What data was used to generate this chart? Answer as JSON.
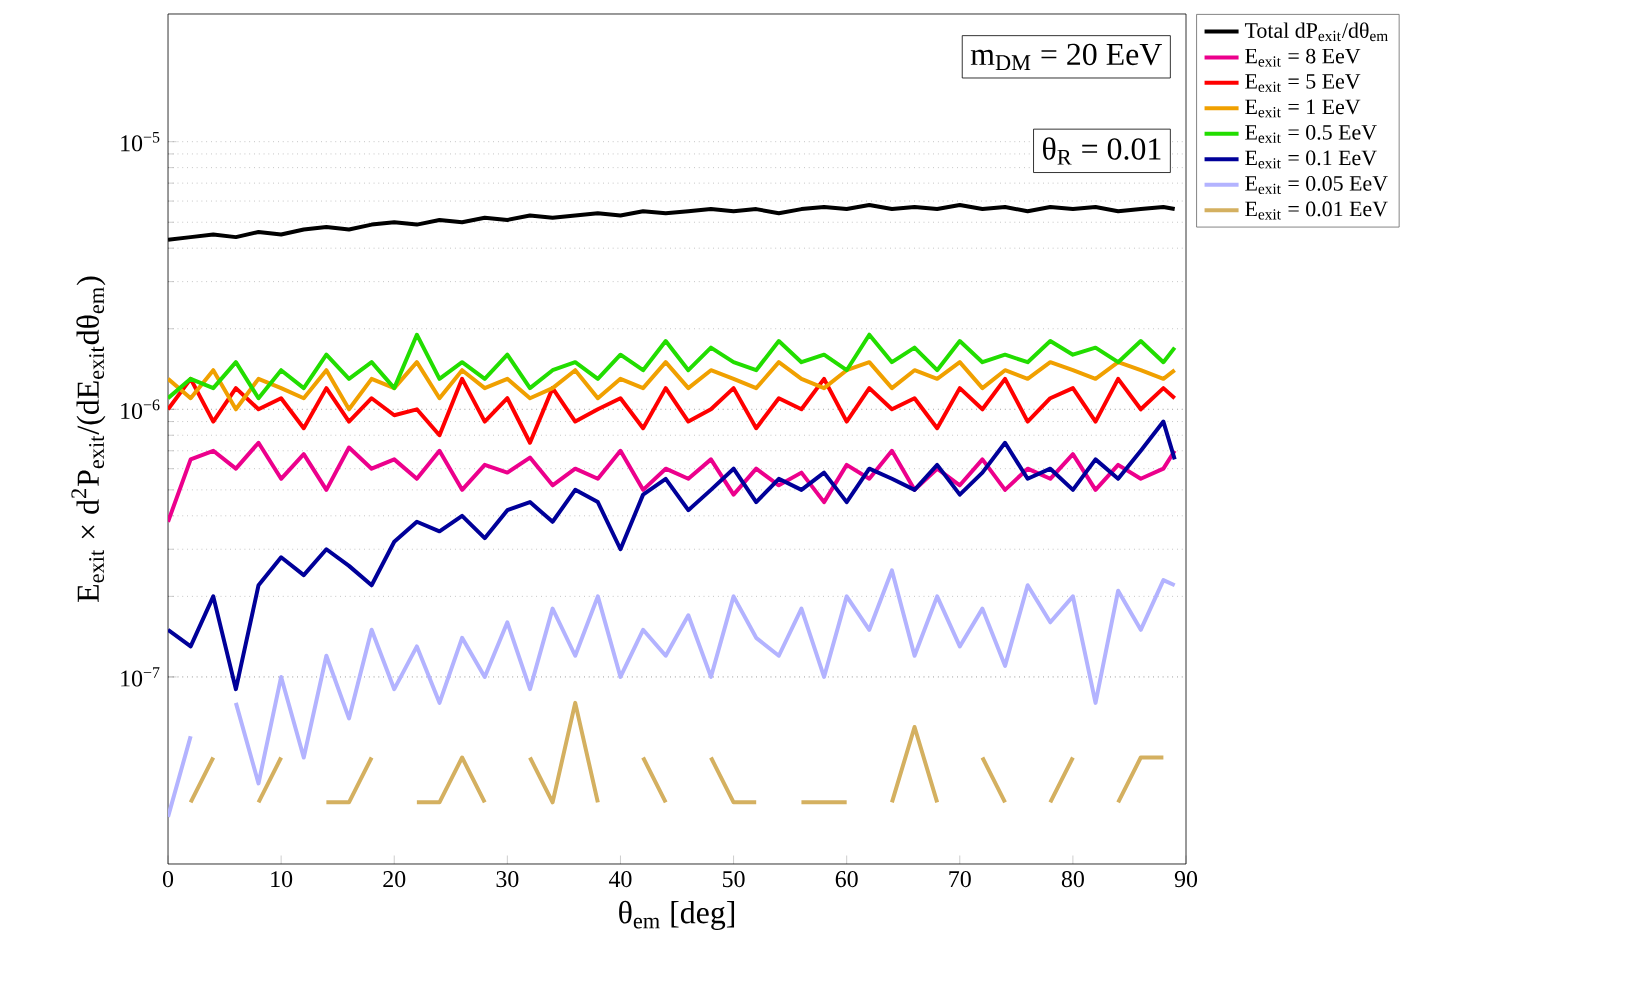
{
  "chart_data": {
    "type": "line",
    "xlabel": "θ$_{em}$ [deg]",
    "ylabel": "E$_{exit}$ × d$^{2}$P$_{exit}$/(dE$_{exit}$dθ$_{em}$)",
    "annotations": [
      "m$_{DM}$ = 20 EeV",
      "θ$_{R}$ = 0.01"
    ],
    "x": [
      0,
      2,
      4,
      6,
      8,
      10,
      12,
      14,
      16,
      18,
      20,
      22,
      24,
      26,
      28,
      30,
      32,
      34,
      36,
      38,
      40,
      42,
      44,
      46,
      48,
      50,
      52,
      54,
      56,
      58,
      60,
      62,
      64,
      66,
      68,
      70,
      72,
      74,
      76,
      78,
      80,
      82,
      84,
      86,
      88,
      89
    ],
    "xlim": [
      0,
      90
    ],
    "xticks": [
      0,
      10,
      20,
      30,
      40,
      50,
      60,
      70,
      80,
      90
    ],
    "ylim": [
      2e-08,
      3e-05
    ],
    "log": "y",
    "grid": "y",
    "legend": "right",
    "yticks": [
      {
        "value": 1e-07,
        "label": "10$^{−7}$"
      },
      {
        "value": 1e-06,
        "label": "10$^{−6}$"
      },
      {
        "value": 1e-05,
        "label": "10$^{−5}$"
      }
    ],
    "series": [
      {
        "name": "Total dP$_{exit}$/dθ$_{em}$",
        "color": "#000000",
        "values": [
          4.3e-06,
          4.4e-06,
          4.5e-06,
          4.4e-06,
          4.6e-06,
          4.5e-06,
          4.7e-06,
          4.8e-06,
          4.7e-06,
          4.9e-06,
          5e-06,
          4.9e-06,
          5.1e-06,
          5e-06,
          5.2e-06,
          5.1e-06,
          5.3e-06,
          5.2e-06,
          5.3e-06,
          5.4e-06,
          5.3e-06,
          5.5e-06,
          5.4e-06,
          5.5e-06,
          5.6e-06,
          5.5e-06,
          5.6e-06,
          5.4e-06,
          5.6e-06,
          5.7e-06,
          5.6e-06,
          5.8e-06,
          5.6e-06,
          5.7e-06,
          5.6e-06,
          5.8e-06,
          5.6e-06,
          5.7e-06,
          5.5e-06,
          5.7e-06,
          5.6e-06,
          5.7e-06,
          5.5e-06,
          5.6e-06,
          5.7e-06,
          5.6e-06
        ]
      },
      {
        "name": "E$_{exit}$ = 8 EeV",
        "color": "#ec008c",
        "values": [
          3.8e-07,
          6.5e-07,
          7e-07,
          6e-07,
          7.5e-07,
          5.5e-07,
          6.8e-07,
          5e-07,
          7.2e-07,
          6e-07,
          6.5e-07,
          5.5e-07,
          7e-07,
          5e-07,
          6.2e-07,
          5.8e-07,
          6.6e-07,
          5.2e-07,
          6e-07,
          5.5e-07,
          7e-07,
          5e-07,
          6e-07,
          5.5e-07,
          6.5e-07,
          4.8e-07,
          6e-07,
          5.2e-07,
          5.8e-07,
          4.5e-07,
          6.2e-07,
          5.5e-07,
          7e-07,
          5e-07,
          6e-07,
          5.2e-07,
          6.5e-07,
          5e-07,
          6e-07,
          5.5e-07,
          6.8e-07,
          5e-07,
          6.2e-07,
          5.5e-07,
          6e-07,
          7e-07
        ]
      },
      {
        "name": "E$_{exit}$ = 5 EeV",
        "color": "#ff0000",
        "values": [
          1e-06,
          1.3e-06,
          9e-07,
          1.2e-06,
          1e-06,
          1.1e-06,
          8.5e-07,
          1.2e-06,
          9e-07,
          1.1e-06,
          9.5e-07,
          1e-06,
          8e-07,
          1.3e-06,
          9e-07,
          1.1e-06,
          7.5e-07,
          1.2e-06,
          9e-07,
          1e-06,
          1.1e-06,
          8.5e-07,
          1.2e-06,
          9e-07,
          1e-06,
          1.2e-06,
          8.5e-07,
          1.1e-06,
          1e-06,
          1.3e-06,
          9e-07,
          1.2e-06,
          1e-06,
          1.1e-06,
          8.5e-07,
          1.2e-06,
          1e-06,
          1.3e-06,
          9e-07,
          1.1e-06,
          1.2e-06,
          9e-07,
          1.3e-06,
          1e-06,
          1.2e-06,
          1.1e-06
        ]
      },
      {
        "name": "E$_{exit}$ = 1 EeV",
        "color": "#f0a000",
        "values": [
          1.3e-06,
          1.1e-06,
          1.4e-06,
          1e-06,
          1.3e-06,
          1.2e-06,
          1.1e-06,
          1.4e-06,
          1e-06,
          1.3e-06,
          1.2e-06,
          1.5e-06,
          1.1e-06,
          1.4e-06,
          1.2e-06,
          1.3e-06,
          1.1e-06,
          1.2e-06,
          1.4e-06,
          1.1e-06,
          1.3e-06,
          1.2e-06,
          1.5e-06,
          1.2e-06,
          1.4e-06,
          1.3e-06,
          1.2e-06,
          1.5e-06,
          1.3e-06,
          1.2e-06,
          1.4e-06,
          1.5e-06,
          1.2e-06,
          1.4e-06,
          1.3e-06,
          1.5e-06,
          1.2e-06,
          1.4e-06,
          1.3e-06,
          1.5e-06,
          1.4e-06,
          1.3e-06,
          1.5e-06,
          1.4e-06,
          1.3e-06,
          1.4e-06
        ]
      },
      {
        "name": "E$_{exit}$ = 0.5 EeV",
        "color": "#22dd00",
        "values": [
          1.1e-06,
          1.3e-06,
          1.2e-06,
          1.5e-06,
          1.1e-06,
          1.4e-06,
          1.2e-06,
          1.6e-06,
          1.3e-06,
          1.5e-06,
          1.2e-06,
          1.9e-06,
          1.3e-06,
          1.5e-06,
          1.3e-06,
          1.6e-06,
          1.2e-06,
          1.4e-06,
          1.5e-06,
          1.3e-06,
          1.6e-06,
          1.4e-06,
          1.8e-06,
          1.4e-06,
          1.7e-06,
          1.5e-06,
          1.4e-06,
          1.8e-06,
          1.5e-06,
          1.6e-06,
          1.4e-06,
          1.9e-06,
          1.5e-06,
          1.7e-06,
          1.4e-06,
          1.8e-06,
          1.5e-06,
          1.6e-06,
          1.5e-06,
          1.8e-06,
          1.6e-06,
          1.7e-06,
          1.5e-06,
          1.8e-06,
          1.5e-06,
          1.7e-06
        ]
      },
      {
        "name": "E$_{exit}$ = 0.1 EeV",
        "color": "#000099",
        "values": [
          1.5e-07,
          1.3e-07,
          2e-07,
          9e-08,
          2.2e-07,
          2.8e-07,
          2.4e-07,
          3e-07,
          2.6e-07,
          2.2e-07,
          3.2e-07,
          3.8e-07,
          3.5e-07,
          4e-07,
          3.3e-07,
          4.2e-07,
          4.5e-07,
          3.8e-07,
          5e-07,
          4.5e-07,
          3e-07,
          4.8e-07,
          5.5e-07,
          4.2e-07,
          5e-07,
          6e-07,
          4.5e-07,
          5.5e-07,
          5e-07,
          5.8e-07,
          4.5e-07,
          6e-07,
          5.5e-07,
          5e-07,
          6.2e-07,
          4.8e-07,
          5.8e-07,
          7.5e-07,
          5.5e-07,
          6e-07,
          5e-07,
          6.5e-07,
          5.5e-07,
          7e-07,
          9e-07,
          6.5e-07
        ]
      },
      {
        "name": "E$_{exit}$ = 0.05 EeV",
        "color": "#b3b3ff",
        "values": [
          3e-08,
          6e-08,
          null,
          8e-08,
          4e-08,
          1e-07,
          5e-08,
          1.2e-07,
          7e-08,
          1.5e-07,
          9e-08,
          1.3e-07,
          8e-08,
          1.4e-07,
          1e-07,
          1.6e-07,
          9e-08,
          1.8e-07,
          1.2e-07,
          2e-07,
          1e-07,
          1.5e-07,
          1.2e-07,
          1.7e-07,
          1e-07,
          2e-07,
          1.4e-07,
          1.2e-07,
          1.8e-07,
          1e-07,
          2e-07,
          1.5e-07,
          2.5e-07,
          1.2e-07,
          2e-07,
          1.3e-07,
          1.8e-07,
          1.1e-07,
          2.2e-07,
          1.6e-07,
          2e-07,
          8e-08,
          2.1e-07,
          1.5e-07,
          2.3e-07,
          2.2e-07
        ]
      },
      {
        "name": "E$_{exit}$ = 0.01 EeV",
        "color": "#d4b060",
        "values": [
          null,
          3.4e-08,
          5e-08,
          null,
          3.4e-08,
          5e-08,
          null,
          3.4e-08,
          3.4e-08,
          5e-08,
          null,
          3.4e-08,
          3.4e-08,
          5e-08,
          3.4e-08,
          null,
          5e-08,
          3.4e-08,
          8e-08,
          3.4e-08,
          null,
          5e-08,
          3.4e-08,
          null,
          5e-08,
          3.4e-08,
          3.4e-08,
          null,
          3.4e-08,
          3.4e-08,
          3.4e-08,
          null,
          3.4e-08,
          6.5e-08,
          3.4e-08,
          null,
          5e-08,
          3.4e-08,
          null,
          3.4e-08,
          5e-08,
          null,
          3.4e-08,
          5e-08,
          5e-08,
          null
        ]
      }
    ]
  }
}
